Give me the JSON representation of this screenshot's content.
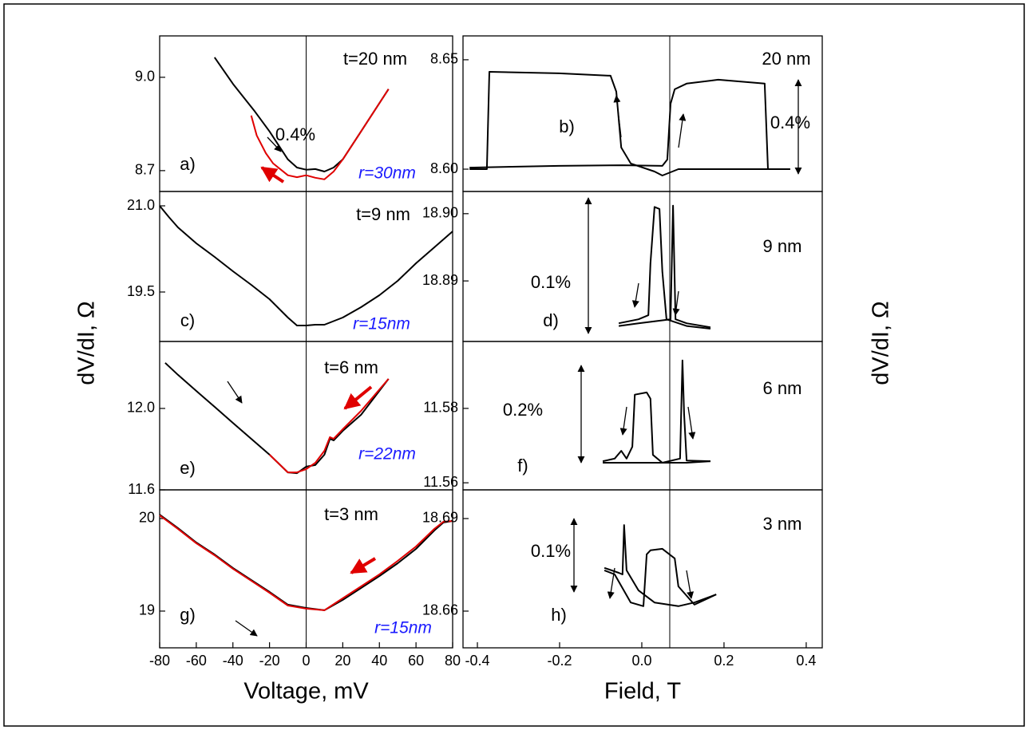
{
  "chart_data": [
    {
      "type": "line",
      "ylabel": "dV/dI, Ω",
      "xlim": [
        -80,
        80
      ],
      "ylim": [
        8.633,
        9.133
      ],
      "yticks": [
        8.7,
        {
          "value": 9,
          "label": "9.0"
        }
      ],
      "vline": 0,
      "annotations": [
        {
          "text": "t=20 nm"
        },
        {
          "text": "0.4%"
        },
        {
          "text": "a)"
        },
        {
          "text": "r=30nm",
          "color": "#1a1aff"
        }
      ],
      "series": [
        {
          "color": "#000000",
          "x": [
            -50,
            -40,
            -28,
            -20,
            -10,
            -5,
            0,
            5,
            10,
            15,
            20,
            30,
            45
          ],
          "values": [
            9.064,
            8.979,
            8.89,
            8.826,
            8.736,
            8.71,
            8.703,
            8.705,
            8.697,
            8.71,
            8.736,
            8.826,
            8.962
          ]
        },
        {
          "color": "#e00000",
          "x": [
            -30,
            -27,
            -22,
            -18,
            -10,
            -5,
            0,
            5,
            10,
            15,
            20,
            30,
            45
          ],
          "values": [
            8.877,
            8.813,
            8.756,
            8.723,
            8.685,
            8.679,
            8.685,
            8.677,
            8.672,
            8.697,
            8.736,
            8.826,
            8.962
          ]
        }
      ]
    },
    {
      "type": "line",
      "ylabel": "dV/dI, Ω",
      "xlim": [
        -0.435,
        0.439
      ],
      "ylim": [
        8.5898,
        8.6609
      ],
      "yticks": [
        {
          "value": 8.6,
          "label": "8.60"
        },
        8.65
      ],
      "vline": 0.068,
      "annotations": [
        {
          "text": "20 nm"
        },
        {
          "text": "b)"
        },
        {
          "text": "0.4%"
        }
      ],
      "series": [
        {
          "color": "#000000",
          "x": [
            -0.419,
            -0.377,
            -0.371,
            -0.202,
            -0.076,
            -0.062,
            -0.05,
            -0.027,
            0.031,
            0.05,
            0.089,
            0.303,
            0.361
          ],
          "values": [
            8.6,
            8.6,
            8.6445,
            8.6438,
            8.6427,
            8.6354,
            8.6099,
            8.6026,
            8.5989,
            8.5971,
            8.6,
            8.6,
            8.6
          ]
        },
        {
          "color": "#000000",
          "x": [
            0.361,
            0.307,
            0.299,
            0.186,
            0.109,
            0.08,
            0.07,
            0.062,
            0.05,
            -0.047,
            -0.202,
            -0.419
          ],
          "values": [
            8.6,
            8.6,
            8.6391,
            8.6409,
            8.6391,
            8.6365,
            8.6299,
            8.6044,
            8.6015,
            8.6018,
            8.6015,
            8.6007
          ]
        }
      ]
    },
    {
      "type": "line",
      "xlim": [
        -80,
        80
      ],
      "ylim": [
        18.639,
        21.25
      ],
      "yticks": [
        19.5,
        {
          "value": 21,
          "label": "21.0"
        }
      ],
      "vline": 0,
      "annotations": [
        {
          "text": "t=9 nm"
        },
        {
          "text": "c)"
        },
        {
          "text": "r=15nm",
          "color": "#1a1aff"
        }
      ],
      "series": [
        {
          "color": "#000000",
          "x": [
            -80,
            -75,
            -70,
            -60,
            -50,
            -40,
            -30,
            -20,
            -10,
            -5,
            0,
            5,
            10,
            20,
            30,
            40,
            50,
            60,
            70,
            80
          ],
          "values": [
            21.0,
            20.806,
            20.625,
            20.347,
            20.111,
            19.861,
            19.625,
            19.375,
            19.056,
            18.917,
            18.917,
            18.931,
            18.931,
            19.056,
            19.236,
            19.444,
            19.694,
            20.0,
            20.278,
            20.556
          ]
        }
      ]
    },
    {
      "type": "line",
      "xlim": [
        -0.435,
        0.439
      ],
      "ylim": [
        18.881,
        18.9033
      ],
      "yticks": [
        18.89,
        {
          "value": 18.9,
          "label": "18.90"
        }
      ],
      "vline": 0.068,
      "annotations": [
        {
          "text": "9 nm"
        },
        {
          "text": "0.1%"
        },
        {
          "text": "d)"
        }
      ],
      "series": [
        {
          "color": "#000000",
          "x": [
            -0.056,
            -0.008,
            0.016,
            0.021,
            0.031,
            0.043,
            0.05,
            0.06,
            0.109,
            0.167
          ],
          "values": [
            18.8837,
            18.8843,
            18.8849,
            18.8926,
            18.901,
            18.9007,
            18.8914,
            18.8843,
            18.8833,
            18.8829
          ]
        },
        {
          "color": "#000000",
          "x": [
            0.167,
            0.109,
            0.082,
            0.076,
            0.07,
            0.031,
            -0.008,
            -0.056
          ],
          "values": [
            18.8831,
            18.8837,
            18.8843,
            18.9012,
            18.8843,
            18.884,
            18.8837,
            18.8833
          ]
        }
      ]
    },
    {
      "type": "line",
      "xlim": [
        -80,
        80
      ],
      "ylim": [
        11.6,
        12.329
      ],
      "yticks": [
        11.6,
        {
          "value": 12,
          "label": "12.0"
        }
      ],
      "vline": 0,
      "annotations": [
        {
          "text": "t=6 nm"
        },
        {
          "text": "e)"
        },
        {
          "text": "r=22nm",
          "color": "#1a1aff"
        }
      ],
      "series": [
        {
          "color": "#000000",
          "x": [
            -77,
            -70,
            -60,
            -50,
            -40,
            -30,
            -20,
            -10,
            -5,
            0,
            5,
            10,
            13,
            15,
            20,
            30,
            45
          ],
          "values": [
            12.224,
            12.165,
            12.086,
            12.008,
            11.929,
            11.851,
            11.773,
            11.686,
            11.682,
            11.714,
            11.722,
            11.773,
            11.851,
            11.843,
            11.89,
            11.969,
            12.145
          ]
        },
        {
          "color": "#e00000",
          "x": [
            -20,
            -10,
            -5,
            0,
            5,
            10,
            13,
            15,
            20,
            30,
            45
          ],
          "values": [
            11.773,
            11.686,
            11.686,
            11.702,
            11.733,
            11.792,
            11.859,
            11.851,
            11.898,
            11.988,
            12.145
          ]
        }
      ]
    },
    {
      "type": "line",
      "xlim": [
        -0.435,
        0.439
      ],
      "ylim": [
        11.5581,
        11.598
      ],
      "yticks": [
        11.56,
        11.58
      ],
      "vline": 0.068,
      "annotations": [
        {
          "text": "6 nm"
        },
        {
          "text": "0.2%"
        },
        {
          "text": "f)"
        }
      ],
      "series": [
        {
          "color": "#000000",
          "x": [
            -0.095,
            -0.066,
            -0.05,
            -0.037,
            -0.023,
            -0.017,
            0.012,
            0.021,
            0.027,
            0.05,
            0.109,
            0.167
          ],
          "values": [
            11.5658,
            11.5665,
            11.5686,
            11.5665,
            11.5697,
            11.5837,
            11.5843,
            11.5826,
            11.5675,
            11.5654,
            11.5654,
            11.5658
          ]
        },
        {
          "color": "#000000",
          "x": [
            0.167,
            0.109,
            0.103,
            0.099,
            0.093,
            0.05,
            -0.008,
            -0.095
          ],
          "values": [
            11.5658,
            11.566,
            11.5783,
            11.5929,
            11.5665,
            11.5654,
            11.5654,
            11.5654
          ]
        }
      ]
    },
    {
      "type": "line",
      "xlabel": "Voltage, mV",
      "xlim": [
        -80,
        80
      ],
      "xticks": [
        -80,
        -60,
        -40,
        -20,
        0,
        20,
        40,
        60,
        80
      ],
      "ylim": [
        18.603,
        20.31
      ],
      "yticks": [
        19,
        20
      ],
      "vline": 0,
      "annotations": [
        {
          "text": "t=3 nm"
        },
        {
          "text": "g)"
        },
        {
          "text": "r=15nm",
          "color": "#1a1aff"
        }
      ],
      "series": [
        {
          "color": "#000000",
          "x": [
            -80,
            -70,
            -60,
            -50,
            -40,
            -30,
            -20,
            -10,
            0,
            10,
            20,
            30,
            40,
            50,
            60,
            70,
            75,
            80
          ],
          "values": [
            20.043,
            19.897,
            19.741,
            19.612,
            19.466,
            19.336,
            19.207,
            19.069,
            19.034,
            19.009,
            19.121,
            19.25,
            19.379,
            19.517,
            19.672,
            19.871,
            19.957,
            19.974
          ]
        },
        {
          "color": "#e00000",
          "x": [
            -80,
            -70,
            -60,
            -50,
            -40,
            -30,
            -20,
            -10,
            0,
            10,
            20,
            30,
            40,
            50,
            60,
            70,
            75,
            80
          ],
          "values": [
            20.034,
            19.888,
            19.733,
            19.603,
            19.457,
            19.328,
            19.198,
            19.06,
            19.026,
            19.009,
            19.138,
            19.267,
            19.397,
            19.543,
            19.698,
            19.888,
            19.966,
            19.974
          ]
        }
      ]
    },
    {
      "type": "line",
      "xlabel": "Field, T",
      "xlim": [
        -0.435,
        0.439
      ],
      "xticks": [
        -0.4,
        -0.2,
        {
          "value": 0,
          "label": "0.0"
        },
        0.2,
        0.4
      ],
      "ylim": [
        18.6481,
        18.6993
      ],
      "yticks": [
        18.66,
        18.69
      ],
      "vline": 0.068,
      "annotations": [
        {
          "text": "3 nm"
        },
        {
          "text": "0.1%"
        },
        {
          "text": "h)"
        }
      ],
      "series": [
        {
          "color": "#000000",
          "x": [
            -0.091,
            -0.056,
            -0.047,
            -0.043,
            -0.037,
            -0.008,
            0.031,
            0.089,
            0.128,
            0.181
          ],
          "values": [
            18.674,
            18.6724,
            18.6719,
            18.6879,
            18.6732,
            18.6667,
            18.6628,
            18.6616,
            18.6628,
            18.6654
          ]
        },
        {
          "color": "#000000",
          "x": [
            0.181,
            0.128,
            0.089,
            0.08,
            0.05,
            0.021,
            0.012,
            0.004,
            -0.027,
            -0.066,
            -0.091
          ],
          "values": [
            18.6654,
            18.6621,
            18.668,
            18.6771,
            18.6802,
            18.6797,
            18.6784,
            18.6616,
            18.6628,
            18.6719,
            18.6732
          ]
        }
      ]
    }
  ]
}
